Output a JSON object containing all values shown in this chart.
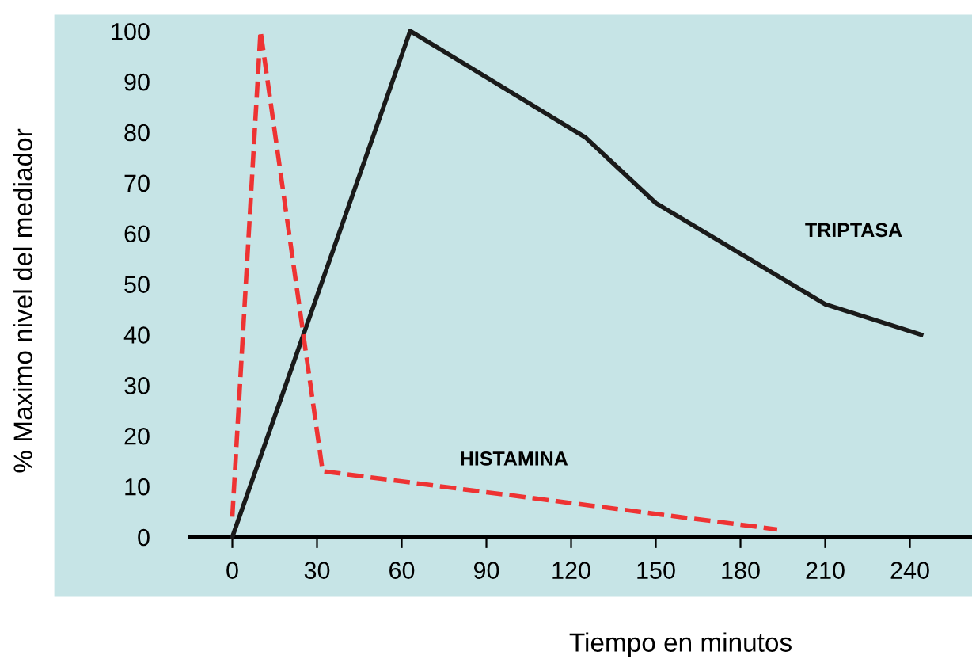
{
  "chart_data": {
    "type": "line",
    "xlabel": "Tiempo en minutos",
    "ylabel": "% Maximo nivel del mediador",
    "xlim": [
      -15,
      262
    ],
    "ylim": [
      0,
      103
    ],
    "xticks": [
      0,
      30,
      60,
      90,
      120,
      150,
      180,
      210,
      240
    ],
    "yticks": [
      0,
      10,
      20,
      30,
      40,
      50,
      60,
      70,
      80,
      90,
      100
    ],
    "grid": false,
    "legend": false,
    "marker": "none",
    "series": [
      {
        "name": "TRIPTASA",
        "color": "#1a1a1a",
        "line_style": "solid",
        "x": [
          0,
          63,
          125,
          150,
          210,
          244
        ],
        "values": [
          0,
          100,
          79,
          66,
          46,
          40
        ]
      },
      {
        "name": "HISTAMINA",
        "color": "#ee3333",
        "line_style": "dashed",
        "x": [
          0,
          10,
          32,
          193
        ],
        "values": [
          4,
          100,
          13,
          1.5
        ]
      }
    ]
  }
}
